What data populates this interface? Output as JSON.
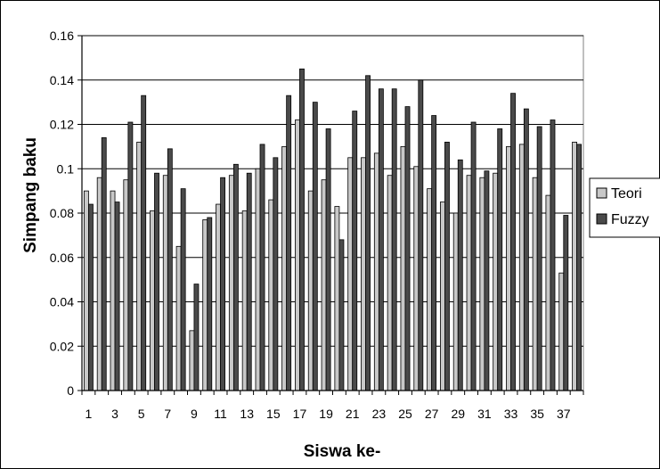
{
  "chart_data": {
    "type": "bar",
    "title": "",
    "xlabel": "Siswa ke-",
    "ylabel": "Simpang baku",
    "ylim": [
      0,
      0.16
    ],
    "ytick_labels": [
      "0",
      "0.02",
      "0.04",
      "0.06",
      "0.08",
      "0.1",
      "0.12",
      "0.14",
      "0.16"
    ],
    "categories": [
      "1",
      "2",
      "3",
      "4",
      "5",
      "6",
      "7",
      "8",
      "9",
      "10",
      "11",
      "12",
      "13",
      "14",
      "15",
      "16",
      "17",
      "18",
      "19",
      "20",
      "21",
      "22",
      "23",
      "24",
      "25",
      "26",
      "27",
      "28",
      "29",
      "30",
      "31",
      "32",
      "33",
      "34",
      "35",
      "36",
      "37",
      "38"
    ],
    "xtick_labels": [
      "1",
      "3",
      "5",
      "7",
      "9",
      "11",
      "13",
      "15",
      "17",
      "19",
      "21",
      "23",
      "25",
      "27",
      "29",
      "31",
      "33",
      "35",
      "37"
    ],
    "grid": true,
    "legend_position": "right",
    "series": [
      {
        "name": "Teori",
        "color": "#c8c8c8",
        "values": [
          0.09,
          0.096,
          0.09,
          0.095,
          0.112,
          0.081,
          0.097,
          0.065,
          0.027,
          0.077,
          0.084,
          0.097,
          0.081,
          0.1,
          0.086,
          0.11,
          0.122,
          0.09,
          0.095,
          0.083,
          0.105,
          0.105,
          0.107,
          0.097,
          0.11,
          0.101,
          0.091,
          0.085,
          0.08,
          0.097,
          0.096,
          0.098,
          0.11,
          0.111,
          0.096,
          0.088,
          0.053,
          0.112
        ]
      },
      {
        "name": "Fuzzy",
        "color": "#4a4a4a",
        "values": [
          0.084,
          0.114,
          0.085,
          0.121,
          0.133,
          0.098,
          0.109,
          0.091,
          0.048,
          0.078,
          0.096,
          0.102,
          0.098,
          0.111,
          0.105,
          0.133,
          0.145,
          0.13,
          0.118,
          0.068,
          0.126,
          0.142,
          0.136,
          0.136,
          0.128,
          0.14,
          0.124,
          0.112,
          0.104,
          0.121,
          0.099,
          0.118,
          0.134,
          0.127,
          0.119,
          0.122,
          0.079,
          0.111
        ]
      }
    ]
  }
}
